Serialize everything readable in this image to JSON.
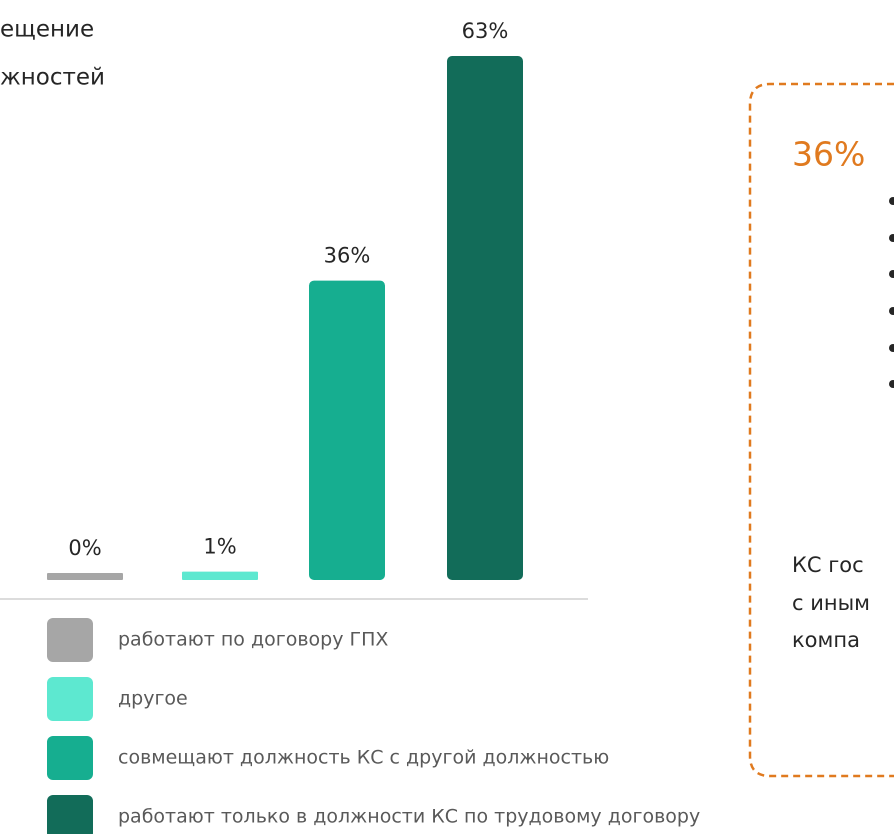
{
  "title_lines": [
    "ещение",
    "жностей"
  ],
  "chart_data": {
    "type": "bar",
    "series": [
      {
        "name": "работают по договору ГПХ",
        "color": "#a6a6a6",
        "values": [
          0
        ],
        "value_labels": [
          "0%"
        ]
      },
      {
        "name": "другое",
        "color": "#5de8d0",
        "values": [
          1
        ],
        "value_labels": [
          "1%"
        ]
      },
      {
        "name": "совмещают должность КС с другой должностью",
        "color": "#16ae90",
        "values": [
          36
        ],
        "value_labels": [
          "36%"
        ]
      },
      {
        "name": "работают только в должности КС по трудовому договору",
        "color": "#126c59",
        "values": [
          63
        ],
        "value_labels": [
          "63%"
        ]
      }
    ]
  },
  "callout": {
    "highlight": "36%",
    "lines": [
      "КС гос",
      "с иным",
      "компа"
    ]
  }
}
